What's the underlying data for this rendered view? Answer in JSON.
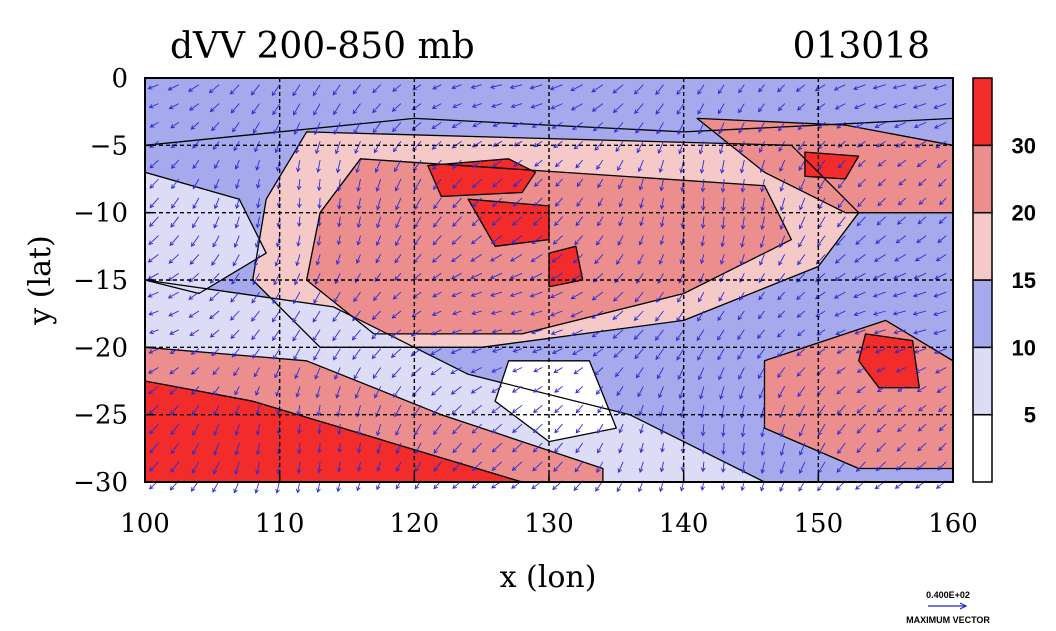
{
  "chart_data": {
    "type": "heatmap",
    "title": "dVV 200-850 mb",
    "date_label": "013018",
    "xlabel": "x (lon)",
    "ylabel": "y (lat)",
    "xlim": [
      100,
      160
    ],
    "ylim": [
      -30,
      0
    ],
    "x_ticks": [
      100,
      110,
      120,
      130,
      140,
      150,
      160
    ],
    "y_ticks": [
      0,
      -5,
      -10,
      -15,
      -20,
      -25,
      -30
    ],
    "grid": true,
    "colorbar": {
      "levels": [
        0,
        5,
        10,
        15,
        20,
        30,
        40
      ],
      "tick_labels": [
        "5",
        "10",
        "15",
        "20",
        "30"
      ],
      "colors": [
        "#ffffff",
        "#dcdcf7",
        "#a6aaec",
        "#f6c9c9",
        "#ec8e8e",
        "#f22b2b"
      ]
    },
    "regions": [
      {
        "name": "equatorial-band",
        "level": 2,
        "points": [
          [
            100,
            0
          ],
          [
            160,
            0
          ],
          [
            160,
            -3
          ],
          [
            140,
            -4
          ],
          [
            120,
            -3
          ],
          [
            100,
            -5
          ]
        ]
      },
      {
        "name": "central-pink-band",
        "level": 3,
        "points": [
          [
            112,
            -4
          ],
          [
            148,
            -5
          ],
          [
            153,
            -10
          ],
          [
            150,
            -14
          ],
          [
            140,
            -18
          ],
          [
            125,
            -20
          ],
          [
            113,
            -20
          ],
          [
            108,
            -15
          ],
          [
            109,
            -9
          ]
        ]
      },
      {
        "name": "central-salmon-band",
        "level": 4,
        "points": [
          [
            116,
            -6
          ],
          [
            146,
            -8
          ],
          [
            148,
            -12
          ],
          [
            140,
            -16
          ],
          [
            128,
            -19
          ],
          [
            117,
            -19
          ],
          [
            112,
            -15
          ],
          [
            113,
            -10
          ]
        ]
      },
      {
        "name": "central-red-core-1",
        "level": 5,
        "points": [
          [
            121,
            -6.5
          ],
          [
            127,
            -6
          ],
          [
            129,
            -7
          ],
          [
            128,
            -8.5
          ],
          [
            122,
            -8.8
          ]
        ]
      },
      {
        "name": "central-red-core-2",
        "level": 5,
        "points": [
          [
            124,
            -9
          ],
          [
            130,
            -9.5
          ],
          [
            130,
            -12
          ],
          [
            126,
            -12.5
          ]
        ]
      },
      {
        "name": "central-red-core-3",
        "level": 5,
        "points": [
          [
            130,
            -13
          ],
          [
            132,
            -12.5
          ],
          [
            132.5,
            -15
          ],
          [
            130,
            -15.5
          ]
        ]
      },
      {
        "name": "ne-salmon-band",
        "level": 4,
        "points": [
          [
            141,
            -3
          ],
          [
            152,
            -3.5
          ],
          [
            160,
            -5
          ],
          [
            160,
            -10
          ],
          [
            152,
            -10
          ],
          [
            146,
            -7
          ]
        ]
      },
      {
        "name": "ne-red-core",
        "level": 5,
        "points": [
          [
            149,
            -5.5
          ],
          [
            153,
            -5.8
          ],
          [
            152,
            -7.5
          ],
          [
            149,
            -7.3
          ]
        ]
      },
      {
        "name": "south-pale-band",
        "level": 1,
        "points": [
          [
            100,
            -15
          ],
          [
            114,
            -17
          ],
          [
            124,
            -22
          ],
          [
            136,
            -25
          ],
          [
            146,
            -30
          ],
          [
            100,
            -30
          ]
        ]
      },
      {
        "name": "south-salmon-band",
        "level": 4,
        "points": [
          [
            100,
            -20
          ],
          [
            112,
            -21
          ],
          [
            122,
            -25
          ],
          [
            134,
            -29
          ],
          [
            134,
            -30
          ],
          [
            100,
            -30
          ]
        ]
      },
      {
        "name": "south-red-core",
        "level": 5,
        "points": [
          [
            100,
            -22.5
          ],
          [
            108,
            -24
          ],
          [
            118,
            -27
          ],
          [
            128,
            -30
          ],
          [
            100,
            -30
          ]
        ]
      },
      {
        "name": "center-white-gap",
        "level": 0,
        "points": [
          [
            127,
            -21
          ],
          [
            133,
            -21
          ],
          [
            135,
            -26
          ],
          [
            130,
            -27
          ],
          [
            126,
            -24
          ]
        ]
      },
      {
        "name": "se-salmon-band",
        "level": 4,
        "points": [
          [
            146,
            -21
          ],
          [
            155,
            -18
          ],
          [
            160,
            -21
          ],
          [
            160,
            -29
          ],
          [
            153,
            -29
          ],
          [
            146,
            -26
          ]
        ]
      },
      {
        "name": "se-red-core",
        "level": 5,
        "points": [
          [
            153.5,
            -19
          ],
          [
            157,
            -19.5
          ],
          [
            157.5,
            -23
          ],
          [
            154.5,
            -23
          ],
          [
            153,
            -21
          ]
        ]
      },
      {
        "name": "west-pale-blue",
        "level": 1,
        "points": [
          [
            100,
            -7
          ],
          [
            107,
            -9
          ],
          [
            109,
            -13
          ],
          [
            104,
            -16
          ],
          [
            100,
            -15
          ]
        ]
      }
    ],
    "quiver": {
      "maximum_vector": "0.400E+02",
      "label": "MAXIMUM VECTOR",
      "wind_field_note": "vectors generally pointing southwest, strongest in the north and east"
    }
  }
}
